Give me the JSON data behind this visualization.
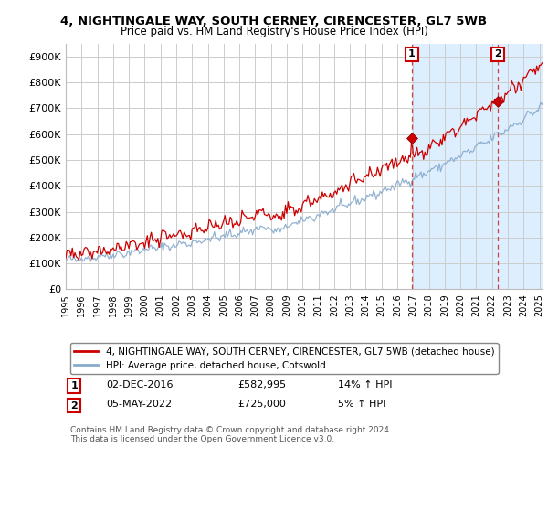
{
  "title_line1": "4, NIGHTINGALE WAY, SOUTH CERNEY, CIRENCESTER, GL7 5WB",
  "title_line2": "Price paid vs. HM Land Registry's House Price Index (HPI)",
  "ylim": [
    0,
    950000
  ],
  "yticks": [
    0,
    100000,
    200000,
    300000,
    400000,
    500000,
    600000,
    700000,
    800000,
    900000
  ],
  "ytick_labels": [
    "£0",
    "£100K",
    "£200K",
    "£300K",
    "£400K",
    "£500K",
    "£600K",
    "£700K",
    "£800K",
    "£900K"
  ],
  "background_color": "#ffffff",
  "plot_bg_color": "#ffffff",
  "grid_color": "#cccccc",
  "highlight_color": "#ddeeff",
  "red_line_color": "#cc0000",
  "blue_line_color": "#88aacc",
  "dashed_line_color": "#cc4444",
  "legend_label_red": "4, NIGHTINGALE WAY, SOUTH CERNEY, CIRENCESTER, GL7 5WB (detached house)",
  "legend_label_blue": "HPI: Average price, detached house, Cotswold",
  "transaction1_date": "02-DEC-2016",
  "transaction1_price": 582995,
  "transaction1_x": 2016.92,
  "transaction2_date": "05-MAY-2022",
  "transaction2_price": 725000,
  "transaction2_x": 2022.37,
  "footer": "Contains HM Land Registry data © Crown copyright and database right 2024.\nThis data is licensed under the Open Government Licence v3.0.",
  "xstart": 1995.0,
  "xend": 2025.2
}
